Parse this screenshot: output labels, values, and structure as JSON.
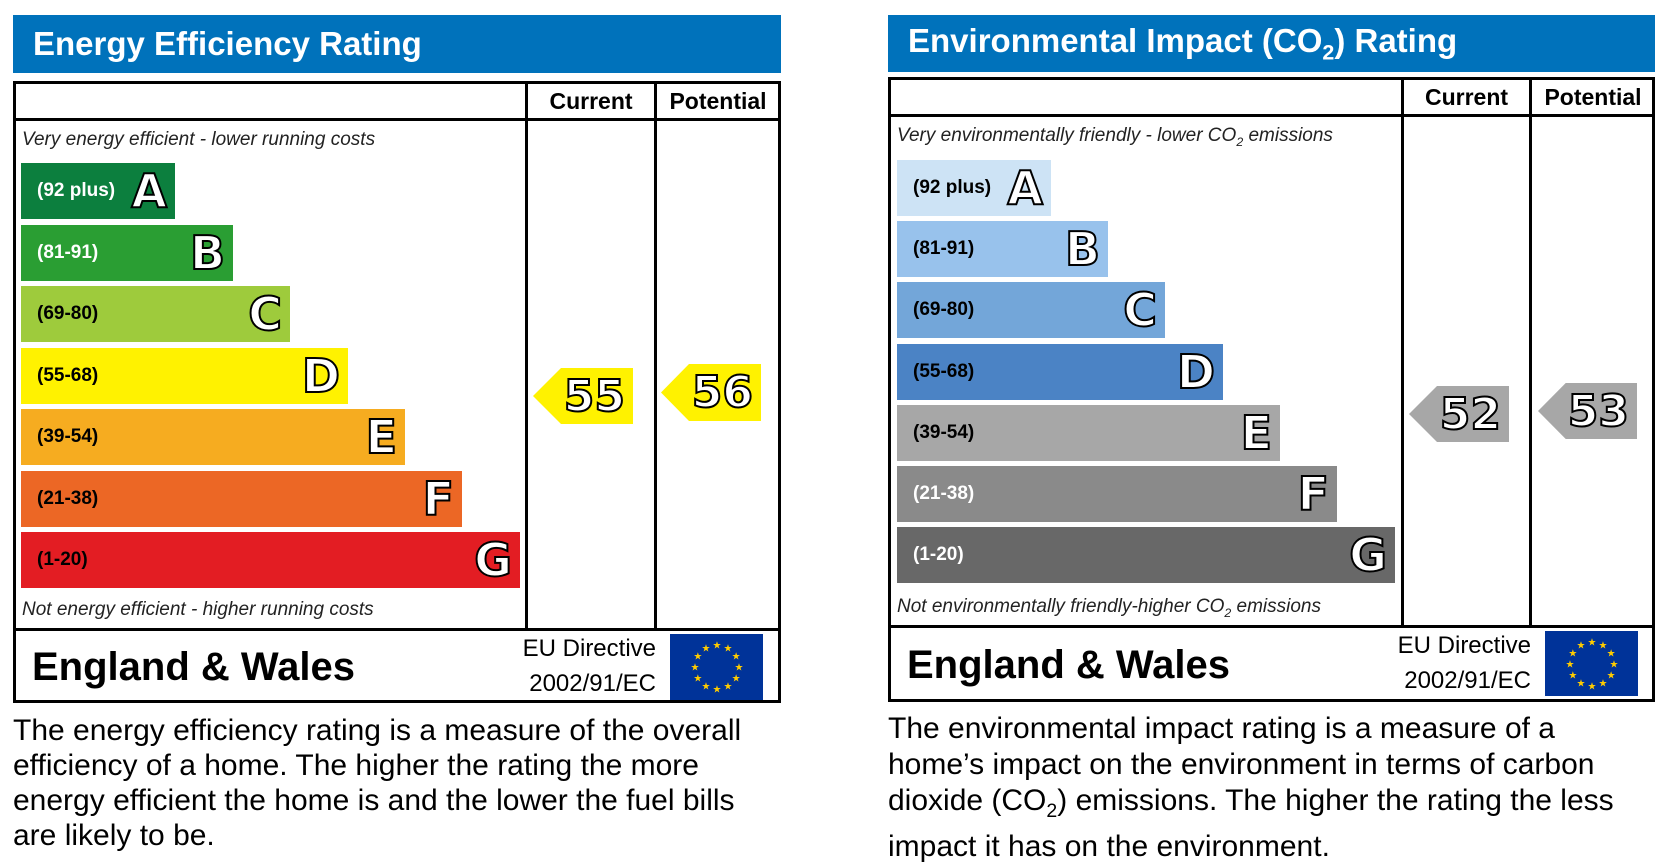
{
  "energy": {
    "title": "Energy Efficiency Rating",
    "current_label": "Current",
    "potential_label": "Potential",
    "top_note": "Very energy efficient - lower running costs",
    "bottom_note": "Not energy efficient - higher running costs",
    "bands": [
      {
        "range": "(92 plus)",
        "letter": "A",
        "color": "#0c7f3e",
        "text_color": "#ffffff"
      },
      {
        "range": "(81-91)",
        "letter": "B",
        "color": "#2a9e33",
        "text_color": "#ffffff"
      },
      {
        "range": "(69-80)",
        "letter": "C",
        "color": "#9ecb3c",
        "text_color": "#000000"
      },
      {
        "range": "(55-68)",
        "letter": "D",
        "color": "#fff200",
        "text_color": "#000000"
      },
      {
        "range": "(39-54)",
        "letter": "E",
        "color": "#f6ac20",
        "text_color": "#000000"
      },
      {
        "range": "(21-38)",
        "letter": "F",
        "color": "#ec6725",
        "text_color": "#000000"
      },
      {
        "range": "(1-20)",
        "letter": "G",
        "color": "#e31d23",
        "text_color": "#000000"
      }
    ],
    "current": "55",
    "potential": "56",
    "arrow_color": "#fff200",
    "region": "England & Wales",
    "directive_line1": "EU Directive",
    "directive_line2": "2002/91/EC",
    "description": "The energy efficiency rating is a measure of the overall efficiency of a home. The higher the rating the more energy efficient the home is and the lower the fuel bills are likely to be."
  },
  "environment": {
    "title_pre": "Environmental Impact (CO",
    "title_sub": "2",
    "title_post": ") Rating",
    "current_label": "Current",
    "potential_label": "Potential",
    "top_note_pre": "Very environmentally friendly - lower CO",
    "top_note_sub": "2",
    "top_note_post": " emissions",
    "bottom_note_pre": "Not environmentally friendly-higher CO",
    "bottom_note_sub": "2",
    "bottom_note_post": " emissions",
    "bands": [
      {
        "range": "(92 plus)",
        "letter": "A",
        "color": "#cde3f5",
        "text_color": "#000000"
      },
      {
        "range": "(81-91)",
        "letter": "B",
        "color": "#98c2ec",
        "text_color": "#000000"
      },
      {
        "range": "(69-80)",
        "letter": "C",
        "color": "#73a6d9",
        "text_color": "#000000"
      },
      {
        "range": "(55-68)",
        "letter": "D",
        "color": "#4b83c5",
        "text_color": "#000000"
      },
      {
        "range": "(39-54)",
        "letter": "E",
        "color": "#a7a7a7",
        "text_color": "#000000"
      },
      {
        "range": "(21-38)",
        "letter": "F",
        "color": "#8a8a8a",
        "text_color": "#ffffff"
      },
      {
        "range": "(1-20)",
        "letter": "G",
        "color": "#686868",
        "text_color": "#ffffff"
      }
    ],
    "current": "52",
    "potential": "53",
    "arrow_color": "#a7a7a7",
    "region": "England & Wales",
    "directive_line1": "EU Directive",
    "directive_line2": "2002/91/EC",
    "description_pre": "The environmental impact rating is a measure of a home’s impact on the environment in terms of carbon dioxide (CO",
    "description_sub": "2",
    "description_post": ") emissions. The higher the rating the less impact it has on the environment."
  }
}
